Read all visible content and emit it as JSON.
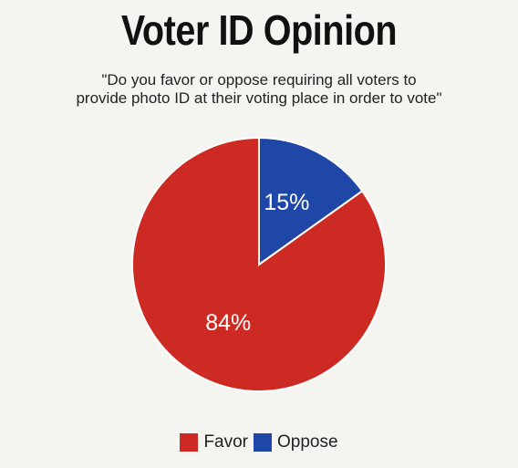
{
  "chart_data": {
    "type": "pie",
    "title": "Voter ID Opinion",
    "subtitle_lines": [
      "\"Do you favor or oppose requiring all voters to",
      "provide photo ID at their voting place in order to vote\""
    ],
    "slices": [
      {
        "label": "Oppose",
        "value": 15,
        "display": "15%",
        "color": "#1f47a8"
      },
      {
        "label": "Favor",
        "value": 84,
        "display": "84%",
        "color": "#cc2a22"
      }
    ],
    "legend": [
      {
        "label": "Favor",
        "color": "#cc2a22"
      },
      {
        "label": "Oppose",
        "color": "#1f47a8"
      }
    ],
    "legend_position": "bottom"
  }
}
